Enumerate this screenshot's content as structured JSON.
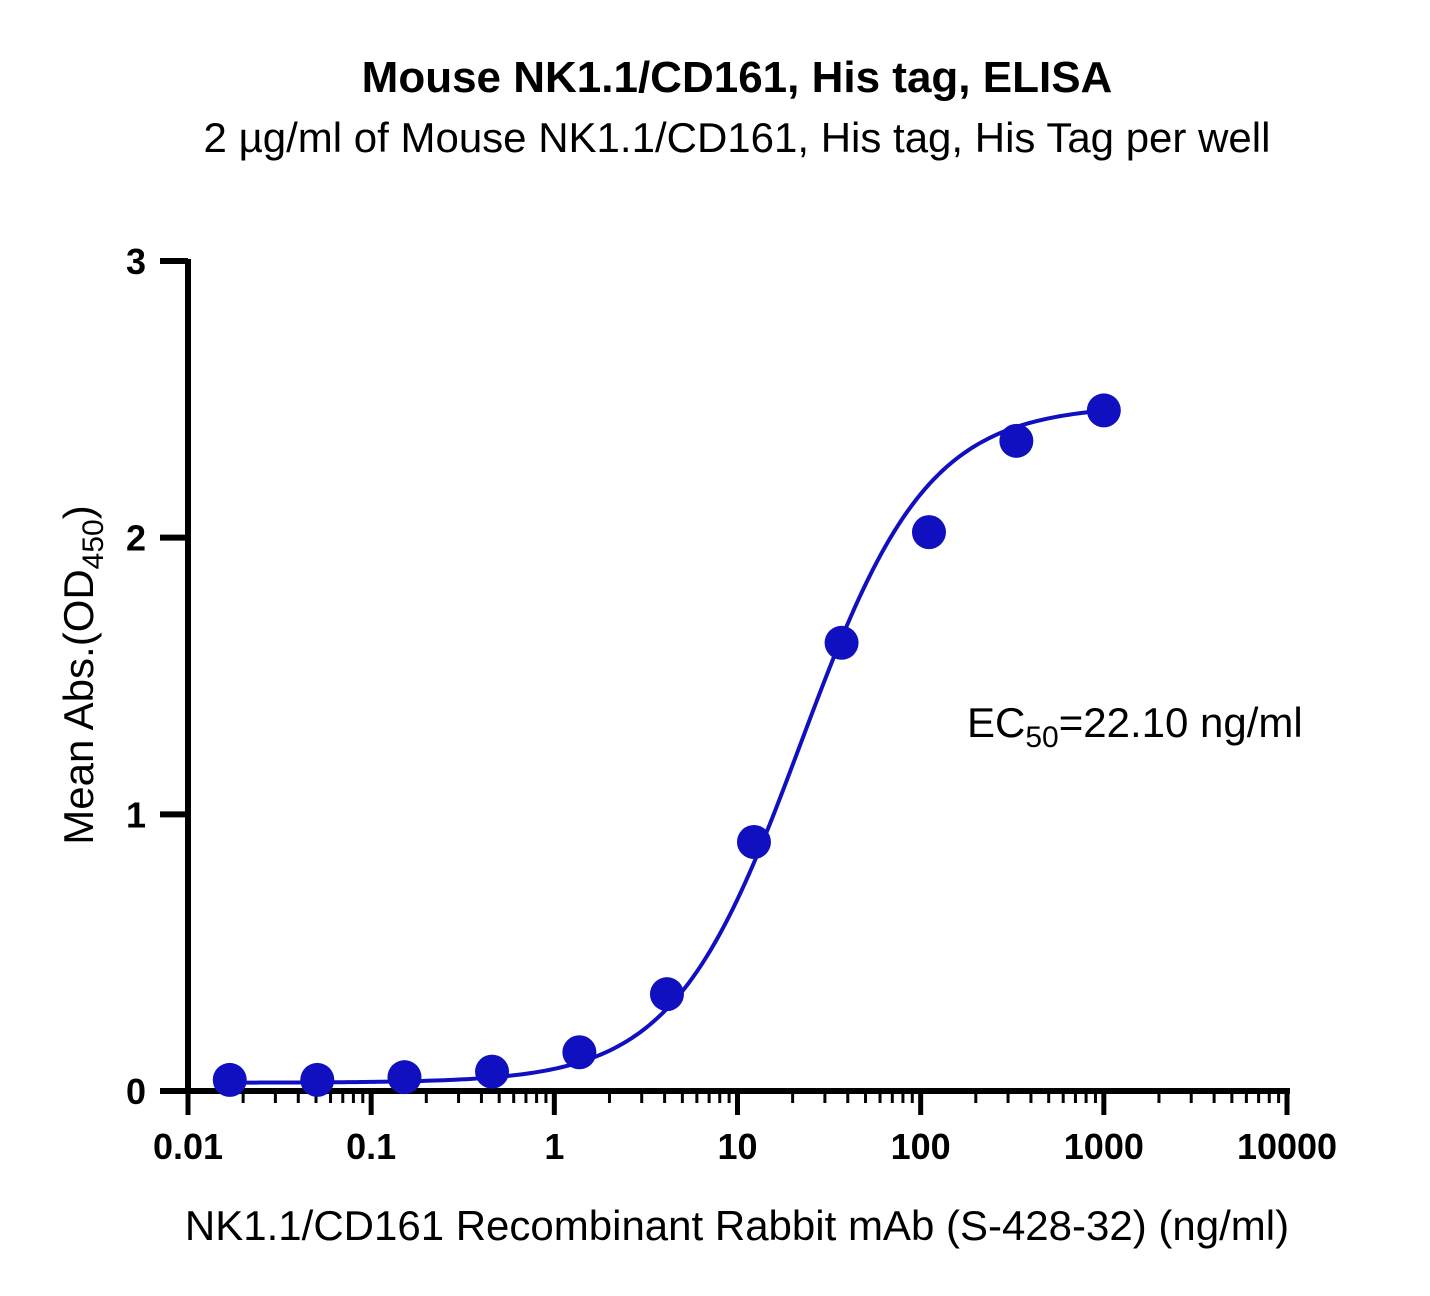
{
  "chart_data": {
    "type": "scatter",
    "title": "Mouse NK1.1/CD161, His tag, ELISA",
    "subtitle": "2 µg/ml of Mouse NK1.1/CD161, His tag, His Tag per well",
    "xlabel": "NK1.1/CD161 Recombinant Rabbit mAb (S-428-32) (ng/ml)",
    "ylabel": {
      "main": "Mean Abs.(OD",
      "sub": "450",
      "close": ")"
    },
    "x_scale": "log",
    "xlim": [
      0.01,
      10000
    ],
    "ylim": [
      0,
      3
    ],
    "x_ticks": [
      {
        "value": 0.01,
        "label": "0.01"
      },
      {
        "value": 0.1,
        "label": "0.1"
      },
      {
        "value": 1,
        "label": "1"
      },
      {
        "value": 10,
        "label": "10"
      },
      {
        "value": 100,
        "label": "100"
      },
      {
        "value": 1000,
        "label": "1000"
      },
      {
        "value": 10000,
        "label": "10000"
      }
    ],
    "y_ticks": [
      {
        "value": 0,
        "label": "0"
      },
      {
        "value": 1,
        "label": "1"
      },
      {
        "value": 2,
        "label": "2"
      },
      {
        "value": 3,
        "label": "3"
      }
    ],
    "series": [
      {
        "color": "#1010c0",
        "x": [
          0.0169,
          0.0508,
          0.152,
          0.457,
          1.37,
          4.12,
          12.3,
          37.0,
          111,
          333,
          1000
        ],
        "y": [
          0.04,
          0.04,
          0.05,
          0.07,
          0.14,
          0.35,
          0.9,
          1.62,
          2.02,
          2.35,
          2.46
        ],
        "fit": {
          "model": "4PL",
          "bottom": 0.03,
          "top": 2.48,
          "ec50": 22.1,
          "hill": 1.25
        }
      }
    ],
    "annotation": {
      "prefix": "EC",
      "sub": "50",
      "suffix": "=22.10 ng/ml"
    },
    "grid": false,
    "legend": "none"
  }
}
